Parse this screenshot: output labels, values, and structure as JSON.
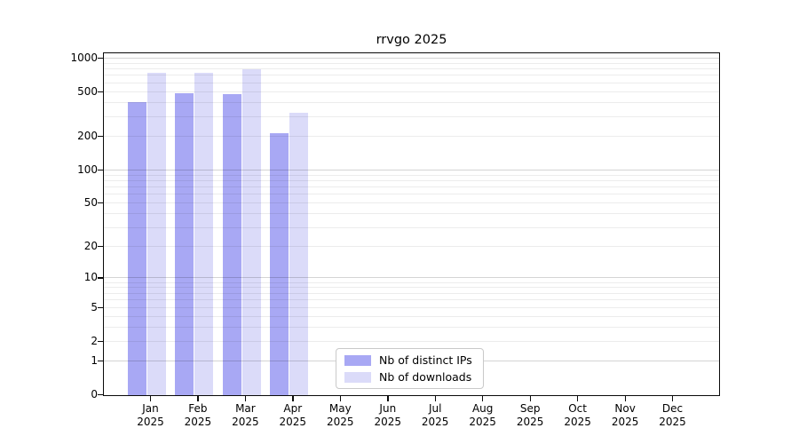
{
  "chart_data": {
    "type": "bar",
    "title": "rrvgo 2025",
    "x_year": "2025",
    "categories": [
      "Jan",
      "Feb",
      "Mar",
      "Apr",
      "May",
      "Jun",
      "Jul",
      "Aug",
      "Sep",
      "Oct",
      "Nov",
      "Dec"
    ],
    "series": [
      {
        "name": "Nb of distinct IPs",
        "color": "#a8a8f4",
        "values": [
          410,
          490,
          480,
          215,
          null,
          null,
          null,
          null,
          null,
          null,
          null,
          null
        ]
      },
      {
        "name": "Nb of downloads",
        "color": "#dbdbf9",
        "values": [
          740,
          750,
          800,
          330,
          null,
          null,
          null,
          null,
          null,
          null,
          null,
          null
        ]
      }
    ],
    "y_scale": "log10(1+v)",
    "ylim": [
      0,
      1093
    ],
    "y_ticks": [
      0,
      1,
      2,
      5,
      10,
      20,
      50,
      100,
      200,
      500,
      1000
    ],
    "grid": "horizontal minor+major, drawn over bars",
    "legend_position": "inside bottom-center",
    "axis_color": "#0a0a0a"
  }
}
